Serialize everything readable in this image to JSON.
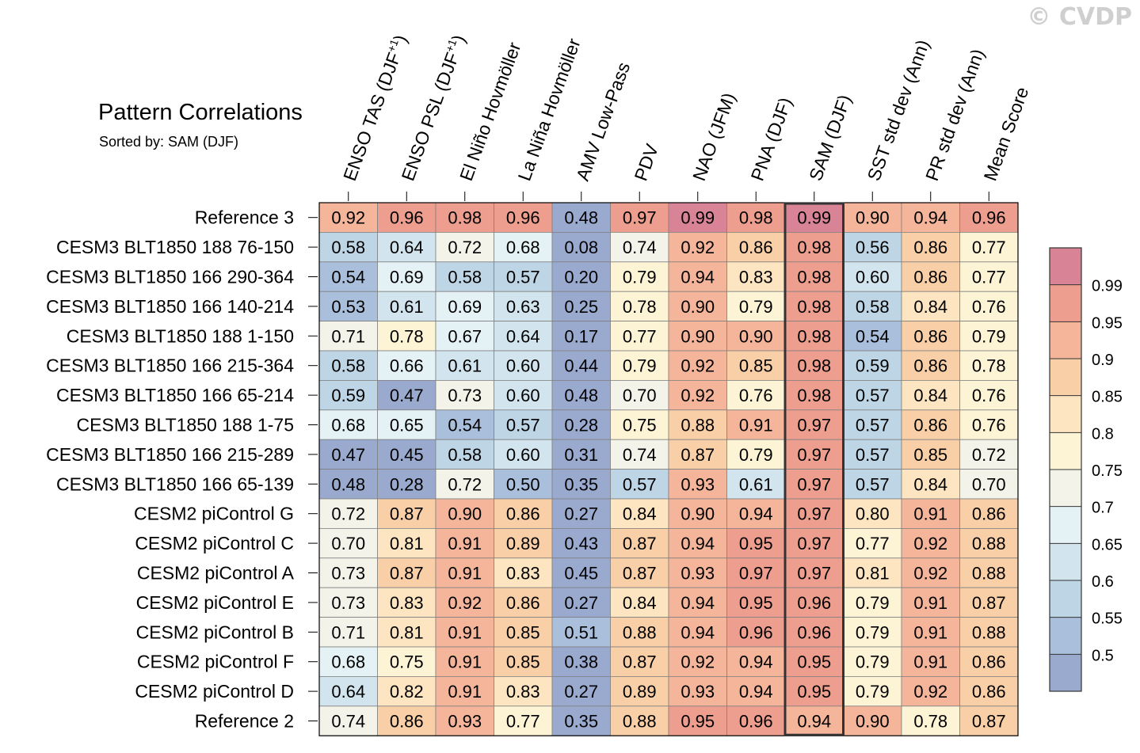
{
  "watermark": "© CVDP",
  "chart_data": {
    "type": "heatmap",
    "title": "Pattern Correlations",
    "subtitle": "Sorted by: SAM (DJF)",
    "columns": [
      "ENSO TAS (DJF+1)",
      "ENSO PSL (DJF+1)",
      "El Niño Hovmöller",
      "La Niña Hovmöller",
      "AMV Low-Pass",
      "PDV",
      "NAO (JFM)",
      "PNA (DJF)",
      "SAM (DJF)",
      "SST std dev (Ann)",
      "PR std dev (Ann)",
      "Mean Score"
    ],
    "highlighted_column": "SAM (DJF)",
    "rows": [
      {
        "label": "Reference 3",
        "values": [
          0.92,
          0.96,
          0.98,
          0.96,
          0.48,
          0.97,
          0.99,
          0.98,
          0.99,
          0.9,
          0.94,
          0.96
        ]
      },
      {
        "label": "CESM3 BLT1850 188 76-150",
        "values": [
          0.58,
          0.64,
          0.72,
          0.68,
          0.08,
          0.74,
          0.92,
          0.86,
          0.98,
          0.56,
          0.86,
          0.77
        ]
      },
      {
        "label": "CESM3 BLT1850 166 290-364",
        "values": [
          0.54,
          0.69,
          0.58,
          0.57,
          0.2,
          0.79,
          0.94,
          0.83,
          0.98,
          0.6,
          0.86,
          0.77
        ]
      },
      {
        "label": "CESM3 BLT1850 166 140-214",
        "values": [
          0.53,
          0.61,
          0.69,
          0.63,
          0.25,
          0.78,
          0.9,
          0.79,
          0.98,
          0.58,
          0.84,
          0.76
        ]
      },
      {
        "label": "CESM3 BLT1850 188 1-150",
        "values": [
          0.71,
          0.78,
          0.67,
          0.64,
          0.17,
          0.77,
          0.9,
          0.9,
          0.98,
          0.54,
          0.86,
          0.79
        ]
      },
      {
        "label": "CESM3 BLT1850 166 215-364",
        "values": [
          0.58,
          0.66,
          0.61,
          0.6,
          0.44,
          0.79,
          0.92,
          0.85,
          0.98,
          0.59,
          0.86,
          0.78
        ]
      },
      {
        "label": "CESM3 BLT1850 166 65-214",
        "values": [
          0.59,
          0.47,
          0.73,
          0.6,
          0.48,
          0.7,
          0.92,
          0.76,
          0.98,
          0.57,
          0.84,
          0.76
        ]
      },
      {
        "label": "CESM3 BLT1850 188 1-75",
        "values": [
          0.68,
          0.65,
          0.54,
          0.57,
          0.28,
          0.75,
          0.88,
          0.91,
          0.97,
          0.57,
          0.86,
          0.76
        ]
      },
      {
        "label": "CESM3 BLT1850 166 215-289",
        "values": [
          0.47,
          0.45,
          0.58,
          0.6,
          0.31,
          0.74,
          0.87,
          0.79,
          0.97,
          0.57,
          0.85,
          0.72
        ]
      },
      {
        "label": "CESM3 BLT1850 166 65-139",
        "values": [
          0.48,
          0.28,
          0.72,
          0.5,
          0.35,
          0.57,
          0.93,
          0.61,
          0.97,
          0.57,
          0.84,
          0.7
        ]
      },
      {
        "label": "CESM2 piControl G",
        "values": [
          0.72,
          0.87,
          0.9,
          0.86,
          0.27,
          0.84,
          0.9,
          0.94,
          0.97,
          0.8,
          0.91,
          0.86
        ]
      },
      {
        "label": "CESM2 piControl C",
        "values": [
          0.7,
          0.81,
          0.91,
          0.89,
          0.43,
          0.87,
          0.94,
          0.95,
          0.97,
          0.77,
          0.92,
          0.88
        ]
      },
      {
        "label": "CESM2 piControl A",
        "values": [
          0.73,
          0.87,
          0.91,
          0.83,
          0.45,
          0.87,
          0.93,
          0.97,
          0.97,
          0.81,
          0.92,
          0.88
        ]
      },
      {
        "label": "CESM2 piControl E",
        "values": [
          0.73,
          0.83,
          0.92,
          0.86,
          0.27,
          0.84,
          0.94,
          0.95,
          0.96,
          0.79,
          0.91,
          0.87
        ]
      },
      {
        "label": "CESM2 piControl B",
        "values": [
          0.71,
          0.81,
          0.91,
          0.85,
          0.51,
          0.88,
          0.94,
          0.96,
          0.96,
          0.79,
          0.91,
          0.88
        ]
      },
      {
        "label": "CESM2 piControl F",
        "values": [
          0.68,
          0.75,
          0.91,
          0.85,
          0.38,
          0.87,
          0.92,
          0.94,
          0.95,
          0.79,
          0.91,
          0.86
        ]
      },
      {
        "label": "CESM2 piControl D",
        "values": [
          0.64,
          0.82,
          0.91,
          0.83,
          0.27,
          0.89,
          0.93,
          0.94,
          0.95,
          0.79,
          0.92,
          0.86
        ]
      },
      {
        "label": "Reference 2",
        "values": [
          0.74,
          0.86,
          0.93,
          0.77,
          0.35,
          0.88,
          0.95,
          0.96,
          0.94,
          0.9,
          0.78,
          0.87
        ]
      }
    ],
    "colorbar": {
      "levels": [
        0.5,
        0.55,
        0.6,
        0.65,
        0.7,
        0.75,
        0.8,
        0.85,
        0.9,
        0.95,
        0.99
      ],
      "tick_labels": [
        "0.5",
        "0.55",
        "0.6",
        "0.65",
        "0.7",
        "0.75",
        "0.8",
        "0.85",
        "0.9",
        "0.95",
        "0.99"
      ],
      "colors": [
        "#9aaacf",
        "#a9bfdb",
        "#bed5e6",
        "#d2e4ee",
        "#e4f1f5",
        "#f3f3ea",
        "#fdf3d5",
        "#fce5c0",
        "#f9cfa8",
        "#f5b59a",
        "#ee9e8e",
        "#d98496"
      ]
    },
    "grid_color": "#808080",
    "highlight_color": "#333333"
  }
}
